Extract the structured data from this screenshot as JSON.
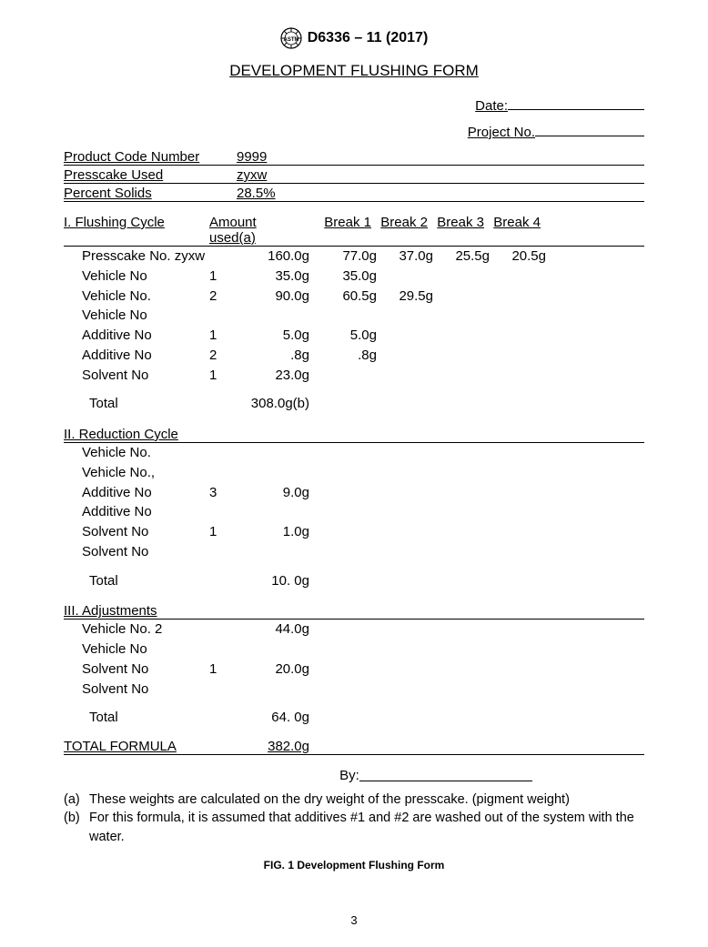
{
  "header": {
    "designation": "D6336 – 11 (2017)",
    "title": "DEVELOPMENT FLUSHING FORM"
  },
  "meta": {
    "date_label": "Date:",
    "project_label": "Project No."
  },
  "info": {
    "product_code_label": "Product Code Number",
    "product_code_value": "9999",
    "presscake_label": "Presscake Used",
    "presscake_value": "zyxw",
    "percent_solids_label": "Percent Solids",
    "percent_solids_value": "28.5%"
  },
  "section1": {
    "header": {
      "title": "I. Flushing Cycle",
      "amount": "Amount used(a)",
      "break1": "Break 1",
      "break2": "Break 2",
      "break3": "Break 3",
      "break4": "Break 4"
    },
    "rows": [
      {
        "label": "Presscake No. zyxw",
        "sub": "",
        "amount": "160.0g",
        "b1": "77.0g",
        "b2": "37.0g",
        "b3": "25.5g",
        "b4": "20.5g"
      },
      {
        "label": "Vehicle No",
        "sub": "1",
        "amount": "35.0g",
        "b1": "35.0g",
        "b2": "",
        "b3": "",
        "b4": ""
      },
      {
        "label": "Vehicle No.",
        "sub": "2",
        "amount": "90.0g",
        "b1": "60.5g",
        "b2": "29.5g",
        "b3": "",
        "b4": ""
      },
      {
        "label": "Vehicle No",
        "sub": "",
        "amount": "",
        "b1": "",
        "b2": "",
        "b3": "",
        "b4": ""
      },
      {
        "label": "Additive No",
        "sub": "1",
        "amount": "5.0g",
        "b1": "5.0g",
        "b2": "",
        "b3": "",
        "b4": ""
      },
      {
        "label": "Additive No",
        "sub": "2",
        "amount": ".8g",
        "b1": ".8g",
        "b2": "",
        "b3": "",
        "b4": ""
      },
      {
        "label": "Solvent No",
        "sub": "1",
        "amount": "23.0g",
        "b1": "",
        "b2": "",
        "b3": "",
        "b4": ""
      }
    ],
    "total_label": "Total",
    "total_value": "308.0g(b)"
  },
  "section2": {
    "title": "II. Reduction Cycle",
    "rows": [
      {
        "label": "Vehicle No.",
        "sub": "",
        "amount": ""
      },
      {
        "label": "Vehicle No.,",
        "sub": "",
        "amount": ""
      },
      {
        "label": "Additive No",
        "sub": "3",
        "amount": "9.0g"
      },
      {
        "label": "Additive No",
        "sub": "",
        "amount": ""
      },
      {
        "label": "Solvent No",
        "sub": "1",
        "amount": "1.0g"
      },
      {
        "label": "Solvent No",
        "sub": "",
        "amount": ""
      }
    ],
    "total_label": "Total",
    "total_value": "10. 0g"
  },
  "section3": {
    "title": "III. Adjustments",
    "rows": [
      {
        "label": "Vehicle No. 2",
        "sub": "",
        "amount": "44.0g"
      },
      {
        "label": "Vehicle No",
        "sub": "",
        "amount": ""
      },
      {
        "label": "Solvent No",
        "sub": "1",
        "amount": "20.0g"
      },
      {
        "label": "Solvent No",
        "sub": "",
        "amount": ""
      }
    ],
    "total_label": "Total",
    "total_value": "64. 0g"
  },
  "grand_total": {
    "label": "TOTAL FORMULA",
    "value": "382.0g"
  },
  "by_label": "By:",
  "notes": {
    "a_marker": "(a)",
    "a_text": "These weights are calculated on the dry weight of the presscake. (pigment weight)",
    "b_marker": "(b)",
    "b_text": "For this formula, it is assumed that additives #1 and #2 are washed out of the system with the water."
  },
  "caption": "FIG. 1 Development Flushing Form",
  "page_number": "3"
}
